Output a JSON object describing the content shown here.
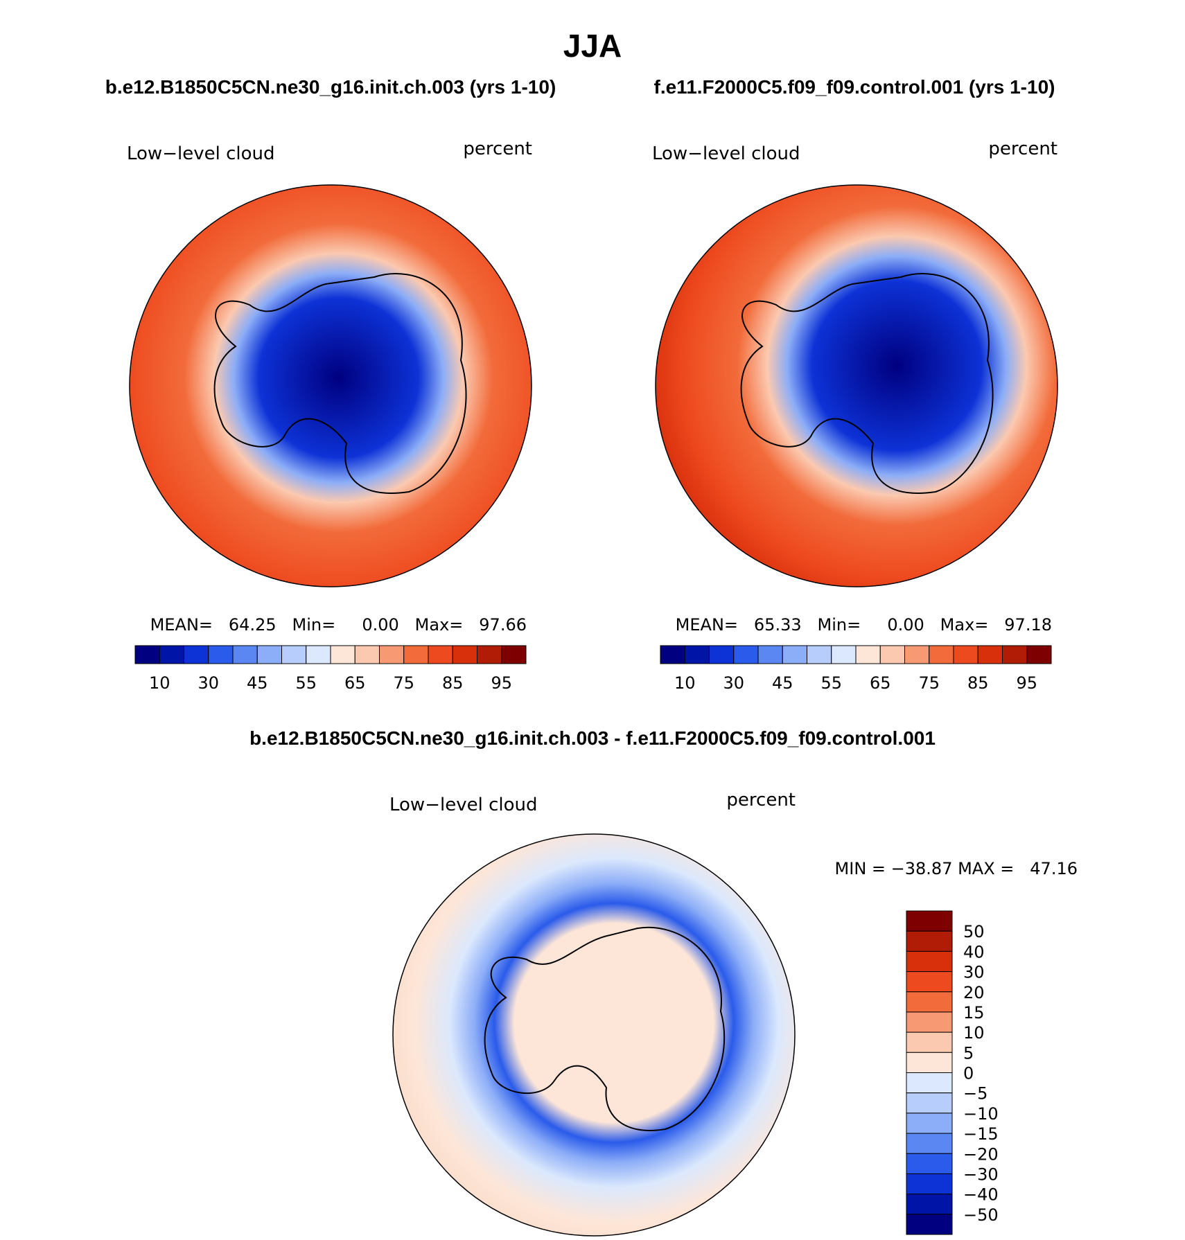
{
  "title": "JJA",
  "panels": [
    {
      "case": "b.e12.B1850C5CN.ne30_g16.init.ch.003 (yrs 1-10)",
      "variable": "Low−level cloud",
      "units": "percent",
      "stats": "MEAN=   64.25   Min=     0.00   Max=   97.66"
    },
    {
      "case": "f.e11.F2000C5.f09_f09.control.001 (yrs 1-10)",
      "variable": "Low−level cloud",
      "units": "percent",
      "stats": "MEAN=   65.33   Min=     0.00   Max=   97.18"
    }
  ],
  "diff_panel": {
    "case": "b.e12.B1850C5CN.ne30_g16.init.ch.003 - f.e11.F2000C5.f09_f09.control.001",
    "variable": "Low−level cloud",
    "units": "percent",
    "stats": "MIN = −38.87 MAX =   47.16"
  },
  "abs_colorbar": {
    "labels": [
      "10",
      "30",
      "45",
      "55",
      "65",
      "75",
      "85",
      "95"
    ],
    "colors": [
      "#000080",
      "#0014a8",
      "#0d32d6",
      "#2a5bea",
      "#5a87f2",
      "#8cadf7",
      "#b7cdfb",
      "#dbe8fd",
      "#fde6d8",
      "#fbc9b0",
      "#f79a74",
      "#f26b3a",
      "#ee4a1f",
      "#d9300c",
      "#b01c06",
      "#7f0000"
    ]
  },
  "diff_colorbar": {
    "labels": [
      "50",
      "40",
      "30",
      "20",
      "15",
      "10",
      "5",
      "0",
      "−5",
      "−10",
      "−15",
      "−20",
      "−30",
      "−40",
      "−50"
    ],
    "colors": [
      "#7f0000",
      "#b01c06",
      "#d9300c",
      "#ee4a1f",
      "#f26b3a",
      "#f79a74",
      "#fbc9b0",
      "#fde6d8",
      "#dbe8fd",
      "#b7cdfb",
      "#8cadf7",
      "#5a87f2",
      "#2a5bea",
      "#0d32d6",
      "#0014a8",
      "#000080"
    ]
  }
}
